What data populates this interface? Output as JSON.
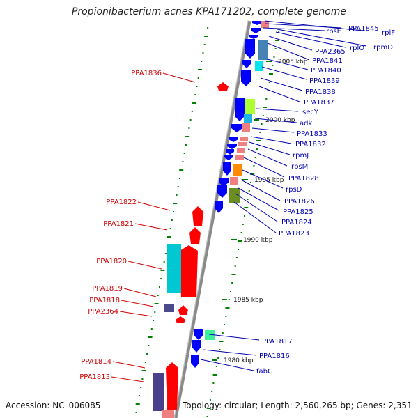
{
  "title": "Propionibacterium acnes KPA171202, complete genome",
  "accession": "Accession: NC_006085",
  "summary": "Topology: circular; Length: 2,560,265 bp; Genes: 2,351",
  "colors": {
    "forward_gene": "#ff0000",
    "reverse_gene": "#0000ff",
    "left_label": "#d00000",
    "right_label": "#0000b0",
    "tick": "#008000",
    "axis": "#888888"
  },
  "scale_labels": [
    "2005 kbp",
    "2000 kbp",
    "1995 kbp",
    "1990 kbp",
    "1985 kbp",
    "1980 kbp"
  ],
  "left_genes": [
    "PPA1836",
    "PPA1822",
    "PPA1821",
    "PPA1820",
    "PPA1819",
    "PPA1818",
    "PPA2364",
    "PPA1814",
    "PPA1813"
  ],
  "right_genes": [
    "rplF",
    "PPA1845",
    "rpsE",
    "rpmD",
    "rplO",
    "PPA2365",
    "PPA1841",
    "PPA1840",
    "PPA1839",
    "PPA1838",
    "PPA1837",
    "secY",
    "adk",
    "PPA1833",
    "PPA1832",
    "rpmJ",
    "rpsM",
    "PPA1828",
    "rpsD",
    "PPA1826",
    "PPA1825",
    "PPA1824",
    "PPA1823",
    "PPA1817",
    "PPA1816",
    "fabG"
  ]
}
